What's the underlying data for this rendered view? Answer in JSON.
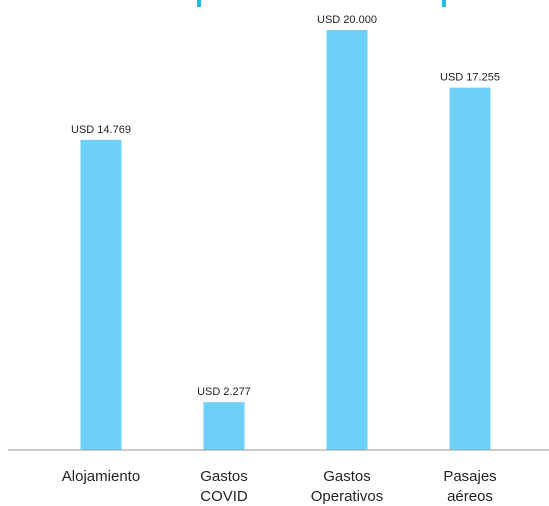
{
  "chart_data": {
    "type": "bar",
    "categories": [
      [
        "Alojamiento"
      ],
      [
        "Gastos",
        "COVID"
      ],
      [
        "Gastos",
        "Operativos"
      ],
      [
        "Pasajes",
        "aéreos"
      ]
    ],
    "values": [
      14769,
      2277,
      20000,
      17255
    ],
    "value_labels": [
      "USD 14.769",
      "USD 2.277",
      "USD 20.000",
      "USD 17.255"
    ],
    "ylim": [
      0,
      20000
    ],
    "grid": false,
    "bar_color": "#6dd0f6",
    "axis_color": "#9a9a9a",
    "top_mark_color": "#29b6e8"
  }
}
